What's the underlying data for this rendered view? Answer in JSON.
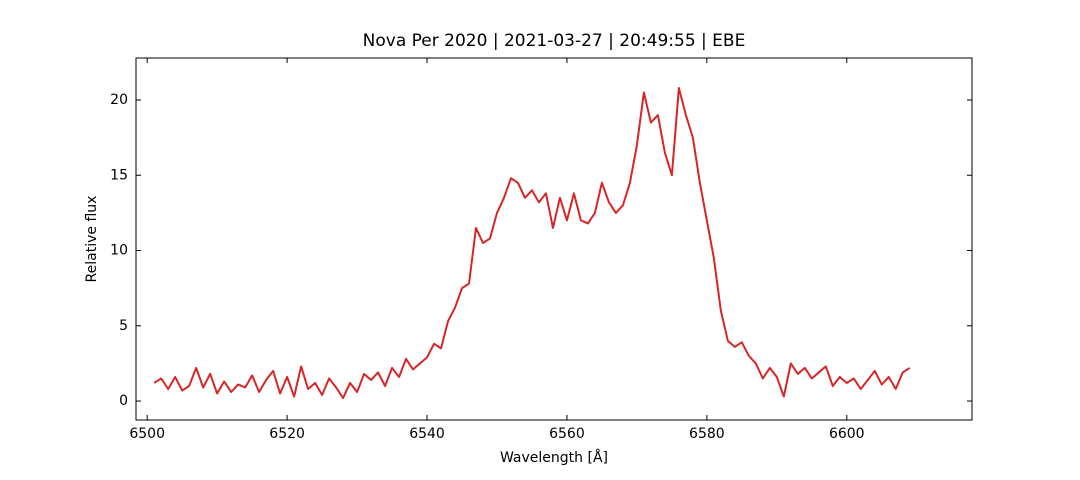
{
  "chart_data": {
    "type": "line",
    "title": "Nova Per 2020 | 2021-03-27 | 20:49:55 | EBE",
    "x_label": "Wavelength [Å]",
    "y_label": "Relative flux",
    "x": [
      6501,
      6502,
      6503,
      6504,
      6505,
      6506,
      6507,
      6508,
      6509,
      6510,
      6511,
      6512,
      6513,
      6514,
      6515,
      6516,
      6517,
      6518,
      6519,
      6520,
      6521,
      6522,
      6523,
      6524,
      6525,
      6526,
      6527,
      6528,
      6529,
      6530,
      6531,
      6532,
      6533,
      6534,
      6535,
      6536,
      6537,
      6538,
      6539,
      6540,
      6541,
      6542,
      6543,
      6544,
      6545,
      6546,
      6547,
      6548,
      6549,
      6550,
      6551,
      6552,
      6553,
      6554,
      6555,
      6556,
      6557,
      6558,
      6559,
      6560,
      6561,
      6562,
      6563,
      6564,
      6565,
      6566,
      6567,
      6568,
      6569,
      6570,
      6571,
      6572,
      6573,
      6574,
      6575,
      6576,
      6577,
      6578,
      6579,
      6580,
      6581,
      6582,
      6583,
      6584,
      6585,
      6586,
      6587,
      6588,
      6589,
      6590,
      6591,
      6592,
      6593,
      6594,
      6595,
      6596,
      6597,
      6598,
      6599,
      6600,
      6601,
      6602,
      6603,
      6604,
      6605,
      6606,
      6607,
      6608,
      6609
    ],
    "series": [
      {
        "color": "#d62728",
        "values": [
          1.2,
          1.5,
          0.8,
          1.6,
          0.7,
          1.0,
          2.2,
          0.9,
          1.8,
          0.5,
          1.3,
          0.6,
          1.1,
          0.9,
          1.7,
          0.6,
          1.4,
          2.0,
          0.5,
          1.6,
          0.3,
          2.3,
          0.8,
          1.2,
          0.4,
          1.5,
          0.9,
          0.2,
          1.2,
          0.6,
          1.8,
          1.4,
          1.9,
          1.0,
          2.2,
          1.6,
          2.8,
          2.1,
          2.5,
          2.9,
          3.8,
          3.5,
          5.3,
          6.2,
          7.5,
          7.8,
          11.5,
          10.5,
          10.8,
          12.5,
          13.5,
          14.8,
          14.5,
          13.5,
          14.0,
          13.2,
          13.8,
          11.5,
          13.5,
          12.0,
          13.8,
          12.0,
          11.8,
          12.5,
          14.5,
          13.2,
          12.5,
          13.0,
          14.5,
          17.0,
          20.5,
          18.5,
          19.0,
          16.5,
          15.0,
          20.8,
          19.0,
          17.5,
          14.5,
          12.0,
          9.5,
          6.0,
          4.0,
          3.6,
          3.9,
          3.0,
          2.5,
          1.5,
          2.2,
          1.6,
          0.3,
          2.5,
          1.8,
          2.2,
          1.5,
          1.9,
          2.3,
          1.0,
          1.6,
          1.2,
          1.5,
          0.8,
          1.4,
          2.0,
          1.1,
          1.6,
          0.8,
          1.9,
          2.2
        ]
      }
    ],
    "xlim": [
      6498.4,
      6617.9
    ],
    "ylim": [
      -1.26,
      22.79
    ],
    "xticks": [
      6500,
      6520,
      6540,
      6560,
      6580,
      6600
    ],
    "yticks": [
      0,
      5,
      10,
      15,
      20
    ]
  }
}
